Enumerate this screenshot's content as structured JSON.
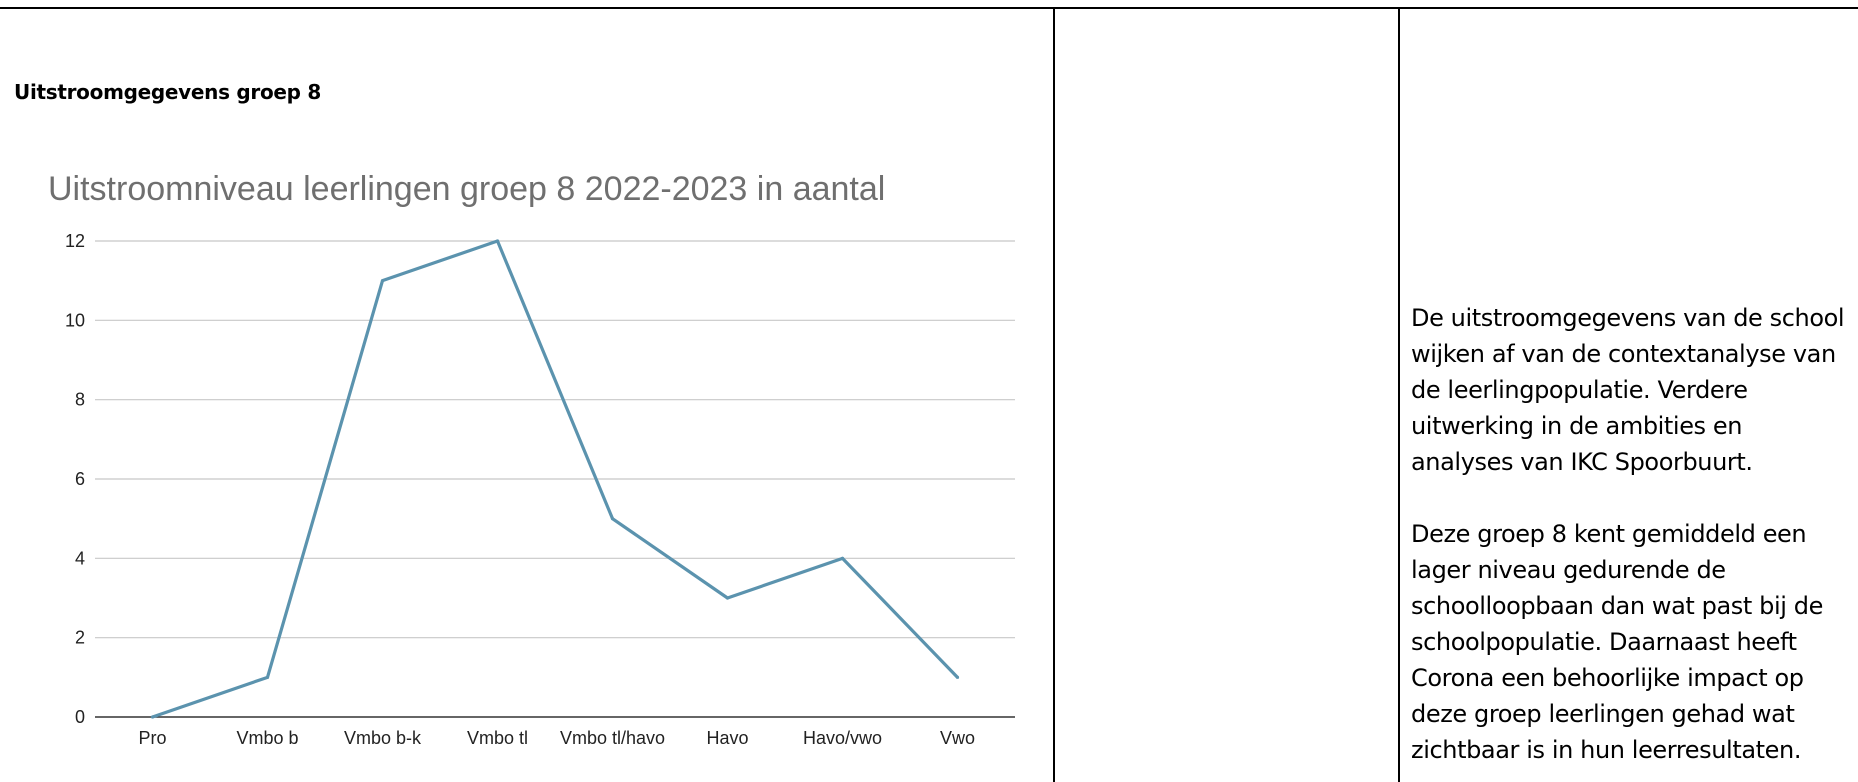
{
  "section_title": "Uitstroomgegevens groep 8",
  "chart_data": {
    "type": "line",
    "title": "Uitstroomniveau leerlingen groep 8 2022-2023 in aantal",
    "categories": [
      "Pro",
      "Vmbo b",
      "Vmbo b-k",
      "Vmbo tl",
      "Vmbo tl/havo",
      "Havo",
      "Havo/vwo",
      "Vwo"
    ],
    "values": [
      0,
      1,
      11,
      12,
      5,
      3,
      4,
      1
    ],
    "yticks": [
      0,
      2,
      4,
      6,
      8,
      10,
      12
    ],
    "ylim": [
      0,
      12
    ],
    "grid": true,
    "line_color": "#5b93ae"
  },
  "note": {
    "paragraph_1_lines": [
      "De uitstroomgegevens van de school",
      "wijken af van  de contextanalyse van",
      "de leerlingpopulatie. Verdere",
      "uitwerking in de ambities en",
      "analyses van IKC Spoorbuurt."
    ],
    "paragraph_2_lines": [
      "Deze groep 8 kent gemiddeld een",
      "lager niveau gedurende de",
      "schoolloopbaan dan wat past bij de",
      "schoolpopulatie. Daarnaast heeft",
      "Corona een behoorlijke impact op",
      "deze groep leerlingen gehad wat",
      "zichtbaar is in hun leerresultaten."
    ]
  }
}
